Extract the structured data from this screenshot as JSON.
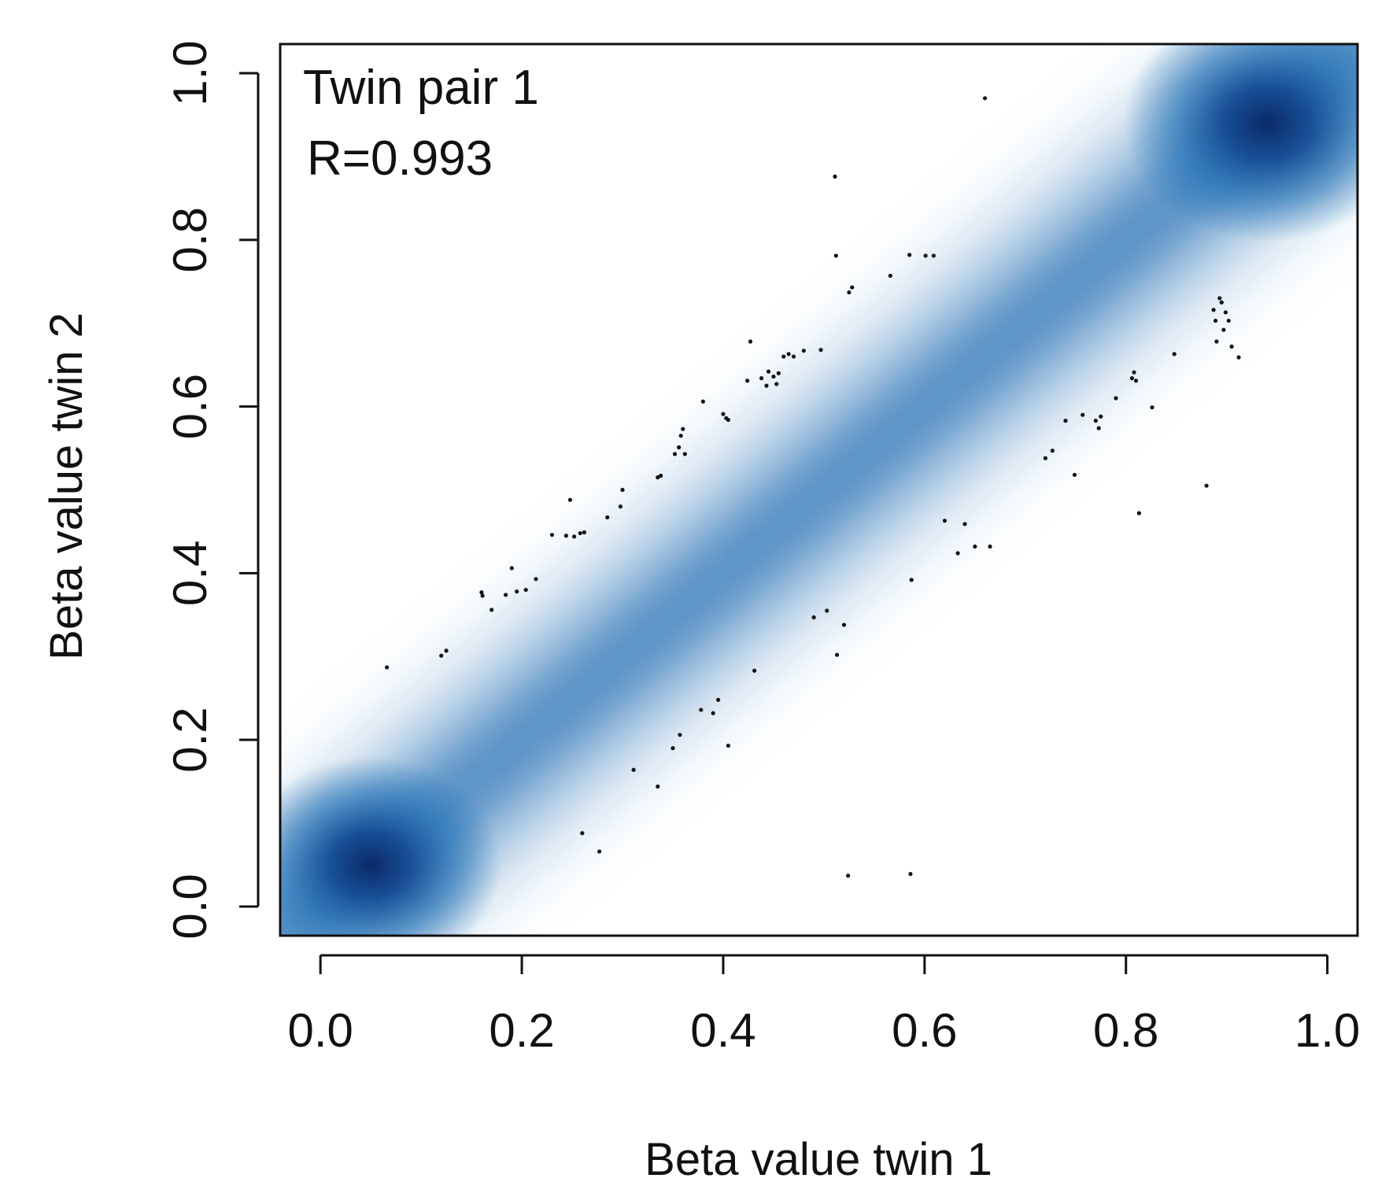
{
  "chart_data": {
    "type": "scatter",
    "title": "",
    "xlabel": "Beta value twin 1",
    "ylabel": "Beta value twin 2",
    "xlim": [
      -0.04,
      1.03
    ],
    "ylim": [
      -0.035,
      1.035
    ],
    "xticks": [
      0.0,
      0.2,
      0.4,
      0.6,
      0.8,
      1.0
    ],
    "yticks": [
      0.0,
      0.2,
      0.4,
      0.6,
      0.8,
      1.0
    ],
    "xtick_labels": [
      "0.0",
      "0.2",
      "0.4",
      "0.6",
      "0.8",
      "1.0"
    ],
    "ytick_labels": [
      "0.0",
      "0.2",
      "0.4",
      "0.6",
      "0.8",
      "1.0"
    ],
    "annotations": [
      "Twin pair 1",
      "R=0.993"
    ],
    "grid": false,
    "density": {
      "description": "smoothed density of the point cloud along the diagonal",
      "color": "#1f6fb4",
      "dark_color": "#0b2a66",
      "diagonal_band_width": 0.06,
      "hotspots": [
        {
          "x": 0.05,
          "y": 0.05,
          "spread": 0.05
        },
        {
          "x": 0.94,
          "y": 0.94,
          "spread": 0.055
        }
      ]
    },
    "points": [
      [
        0.066,
        0.287
      ],
      [
        0.12,
        0.301
      ],
      [
        0.125,
        0.307
      ],
      [
        0.16,
        0.377
      ],
      [
        0.161,
        0.373
      ],
      [
        0.17,
        0.356
      ],
      [
        0.184,
        0.374
      ],
      [
        0.19,
        0.406
      ],
      [
        0.195,
        0.378
      ],
      [
        0.204,
        0.38
      ],
      [
        0.214,
        0.393
      ],
      [
        0.23,
        0.446
      ],
      [
        0.244,
        0.445
      ],
      [
        0.248,
        0.488
      ],
      [
        0.252,
        0.444
      ],
      [
        0.258,
        0.448
      ],
      [
        0.262,
        0.449
      ],
      [
        0.285,
        0.467
      ],
      [
        0.298,
        0.48
      ],
      [
        0.3,
        0.5
      ],
      [
        0.335,
        0.515
      ],
      [
        0.338,
        0.517
      ],
      [
        0.352,
        0.543
      ],
      [
        0.356,
        0.551
      ],
      [
        0.358,
        0.565
      ],
      [
        0.36,
        0.573
      ],
      [
        0.362,
        0.543
      ],
      [
        0.38,
        0.606
      ],
      [
        0.4,
        0.591
      ],
      [
        0.403,
        0.586
      ],
      [
        0.405,
        0.584
      ],
      [
        0.424,
        0.631
      ],
      [
        0.427,
        0.678
      ],
      [
        0.438,
        0.634
      ],
      [
        0.443,
        0.625
      ],
      [
        0.445,
        0.642
      ],
      [
        0.45,
        0.636
      ],
      [
        0.453,
        0.627
      ],
      [
        0.455,
        0.64
      ],
      [
        0.46,
        0.66
      ],
      [
        0.465,
        0.663
      ],
      [
        0.47,
        0.66
      ],
      [
        0.48,
        0.667
      ],
      [
        0.497,
        0.668
      ],
      [
        0.511,
        0.876
      ],
      [
        0.512,
        0.781
      ],
      [
        0.525,
        0.737
      ],
      [
        0.528,
        0.743
      ],
      [
        0.566,
        0.757
      ],
      [
        0.585,
        0.782
      ],
      [
        0.601,
        0.781
      ],
      [
        0.609,
        0.781
      ],
      [
        0.66,
        0.97
      ],
      [
        0.26,
        0.088
      ],
      [
        0.277,
        0.066
      ],
      [
        0.311,
        0.164
      ],
      [
        0.335,
        0.144
      ],
      [
        0.35,
        0.19
      ],
      [
        0.357,
        0.206
      ],
      [
        0.378,
        0.236
      ],
      [
        0.39,
        0.232
      ],
      [
        0.395,
        0.248
      ],
      [
        0.405,
        0.193
      ],
      [
        0.431,
        0.283
      ],
      [
        0.49,
        0.347
      ],
      [
        0.503,
        0.355
      ],
      [
        0.513,
        0.302
      ],
      [
        0.52,
        0.338
      ],
      [
        0.524,
        0.037
      ],
      [
        0.586,
        0.039
      ],
      [
        0.587,
        0.392
      ],
      [
        0.62,
        0.463
      ],
      [
        0.633,
        0.424
      ],
      [
        0.64,
        0.459
      ],
      [
        0.65,
        0.432
      ],
      [
        0.665,
        0.432
      ],
      [
        0.72,
        0.538
      ],
      [
        0.727,
        0.547
      ],
      [
        0.74,
        0.583
      ],
      [
        0.749,
        0.518
      ],
      [
        0.757,
        0.59
      ],
      [
        0.77,
        0.583
      ],
      [
        0.773,
        0.574
      ],
      [
        0.775,
        0.588
      ],
      [
        0.79,
        0.61
      ],
      [
        0.806,
        0.634
      ],
      [
        0.808,
        0.641
      ],
      [
        0.81,
        0.631
      ],
      [
        0.813,
        0.472
      ],
      [
        0.826,
        0.599
      ],
      [
        0.848,
        0.663
      ],
      [
        0.88,
        0.505
      ],
      [
        0.887,
        0.716
      ],
      [
        0.889,
        0.703
      ],
      [
        0.89,
        0.678
      ],
      [
        0.893,
        0.73
      ],
      [
        0.895,
        0.725
      ],
      [
        0.897,
        0.692
      ],
      [
        0.899,
        0.713
      ],
      [
        0.902,
        0.703
      ],
      [
        0.905,
        0.672
      ],
      [
        0.912,
        0.659
      ]
    ]
  }
}
